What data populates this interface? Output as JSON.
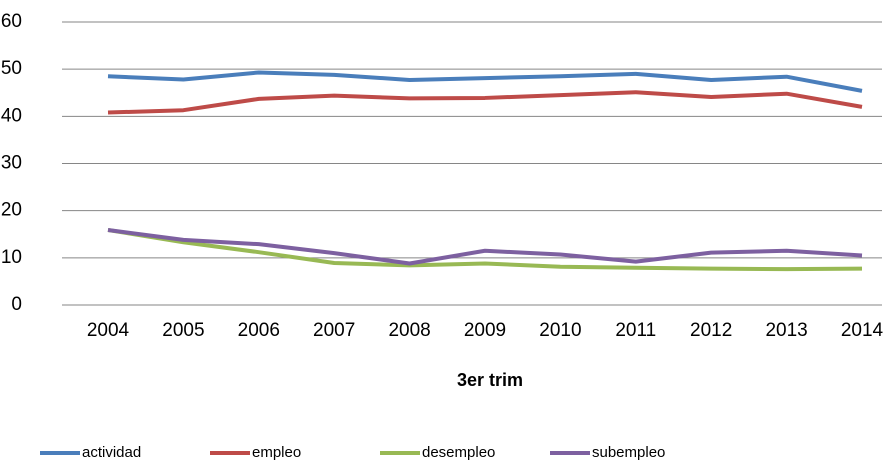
{
  "chart_data": {
    "type": "line",
    "categories": [
      "2004",
      "2005",
      "2006",
      "2007",
      "2008",
      "2009",
      "2010",
      "2011",
      "2012",
      "2013",
      "2014"
    ],
    "x_label": "3er trim",
    "series": [
      {
        "name": "actividad",
        "color": "#4a7ebb",
        "values": [
          48.5,
          47.8,
          49.3,
          48.8,
          47.7,
          48.1,
          48.5,
          49.0,
          47.7,
          48.4,
          45.4
        ]
      },
      {
        "name": "empleo",
        "color": "#be4b48",
        "values": [
          40.8,
          41.3,
          43.7,
          44.4,
          43.8,
          43.9,
          44.5,
          45.1,
          44.1,
          44.8,
          42.0
        ]
      },
      {
        "name": "desempleo",
        "color": "#98b954",
        "values": [
          15.9,
          13.3,
          11.2,
          8.9,
          8.4,
          8.8,
          8.1,
          7.9,
          7.7,
          7.6,
          7.7
        ]
      },
      {
        "name": "subempleo",
        "color": "#7d60a0",
        "values": [
          15.9,
          13.8,
          12.9,
          11.0,
          8.8,
          11.5,
          10.7,
          9.2,
          11.1,
          11.5,
          10.5
        ]
      }
    ],
    "ylim": [
      0,
      60
    ],
    "yticks": [
      0,
      10,
      20,
      30,
      40,
      50,
      60
    ],
    "grid": true,
    "legend": "bottom"
  }
}
